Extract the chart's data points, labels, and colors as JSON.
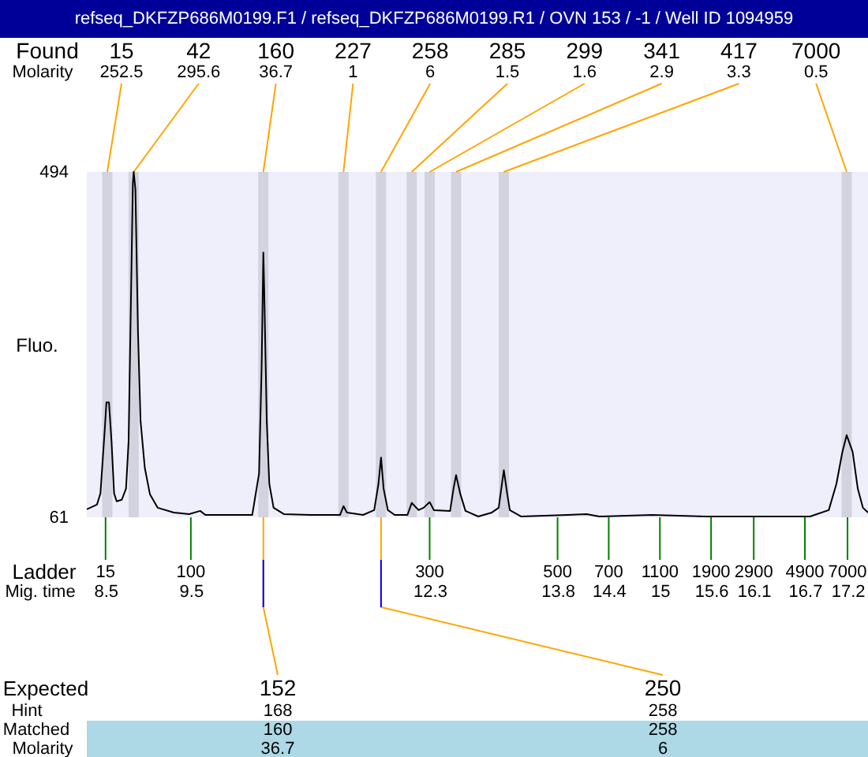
{
  "chart_data": {
    "type": "line",
    "title": "refseq_DKFZP686M0199.F1 / refseq_DKFZP686M0199.R1 / OVN 153 / -1 / Well ID 1094959",
    "xlabel": "Mig. time",
    "ylabel": "Fluo.",
    "xlim": [
      8.28,
      17.44
    ],
    "xticks": [
      8.5,
      9.5,
      12.3,
      13.8,
      14.4,
      15,
      15.6,
      16.1,
      16.7,
      17.2
    ],
    "ylim": [
      61,
      494
    ],
    "yticks": [
      61,
      494
    ],
    "x": [
      8.28,
      8.4,
      8.44,
      8.49,
      8.51,
      8.54,
      8.57,
      8.6,
      8.63,
      8.69,
      8.74,
      8.77,
      8.8,
      8.82,
      8.83,
      8.85,
      8.88,
      8.91,
      8.96,
      9.02,
      9.11,
      9.3,
      9.48,
      9.61,
      9.67,
      10.22,
      10.3,
      10.33,
      10.35,
      10.36,
      10.39,
      10.42,
      10.47,
      10.59,
      10.9,
      11.25,
      11.29,
      11.33,
      11.52,
      11.65,
      11.7,
      11.73,
      11.76,
      11.81,
      11.89,
      12.04,
      12.09,
      12.17,
      12.23,
      12.3,
      12.35,
      12.54,
      12.58,
      12.61,
      12.66,
      12.72,
      12.87,
      13.03,
      13.11,
      13.14,
      13.17,
      13.21,
      13.24,
      13.37,
      13.92,
      14.14,
      14.29,
      14.91,
      15.53,
      16.76,
      16.98,
      17.07,
      17.14,
      17.19,
      17.26,
      17.32,
      17.38,
      17.44
    ],
    "series": [
      {
        "color": "#000000",
        "values": [
          71,
          77,
          91,
          170,
          205,
          205,
          156,
          91,
          81,
          83,
          97,
          156,
          348,
          479,
          494,
          472,
          294,
          182,
          123,
          90,
          73,
          67,
          65,
          69,
          64,
          64,
          116,
          249,
          393,
          348,
          182,
          103,
          73,
          65,
          64,
          64,
          75,
          67,
          64,
          70,
          103,
          136,
          97,
          70,
          64,
          64,
          79,
          70,
          73,
          80,
          70,
          69,
          97,
          114,
          90,
          69,
          62,
          67,
          73,
          97,
          120,
          90,
          70,
          62,
          64,
          65,
          62,
          64,
          62,
          62,
          70,
          103,
          143,
          164,
          143,
          97,
          73,
          67
        ]
      }
    ],
    "bands": [
      {
        "axis": "x",
        "from": 8.46,
        "to": 8.58,
        "label": "15",
        "color": "#d3d3df"
      },
      {
        "axis": "x",
        "from": 8.77,
        "to": 8.89,
        "label": "42",
        "color": "#d3d3df"
      },
      {
        "axis": "x",
        "from": 10.29,
        "to": 10.41,
        "label": "160",
        "color": "#d3d3df"
      },
      {
        "axis": "x",
        "from": 11.23,
        "to": 11.35,
        "label": "227",
        "color": "#d3d3df"
      },
      {
        "axis": "x",
        "from": 11.67,
        "to": 11.79,
        "label": "258",
        "color": "#d3d3df"
      },
      {
        "axis": "x",
        "from": 12.03,
        "to": 12.15,
        "label": "285",
        "color": "#d3d3df"
      },
      {
        "axis": "x",
        "from": 12.24,
        "to": 12.36,
        "label": "299",
        "color": "#d3d3df"
      },
      {
        "axis": "x",
        "from": 12.55,
        "to": 12.67,
        "label": "341",
        "color": "#d3d3df"
      },
      {
        "axis": "x",
        "from": 13.11,
        "to": 13.23,
        "label": "417",
        "color": "#d3d3df"
      },
      {
        "axis": "x",
        "from": 17.13,
        "to": 17.25,
        "label": "7000",
        "color": "#d3d3df"
      }
    ],
    "annotations": [
      "Found",
      "Molarity",
      "Ladder",
      "Expected",
      "Hint",
      "Matched",
      "Molarity",
      {
        "text": "252.5",
        "x": 8.52,
        "y": 494
      },
      {
        "text": "295.6",
        "x": 8.83,
        "y": 494
      },
      {
        "text": "36.7",
        "x": 10.35,
        "y": 494
      },
      {
        "text": "1",
        "x": 11.29,
        "y": 494
      },
      {
        "text": "6",
        "x": 11.73,
        "y": 494
      },
      {
        "text": "1.5",
        "x": 12.09,
        "y": 494
      },
      {
        "text": "1.6",
        "x": 12.3,
        "y": 494
      },
      {
        "text": "2.9",
        "x": 12.61,
        "y": 494
      },
      {
        "text": "3.3",
        "x": 13.17,
        "y": 494
      },
      {
        "text": "0.5",
        "x": 17.19,
        "y": 494
      },
      "15",
      "100",
      "300",
      "500",
      "700",
      "1100",
      "1900",
      "2900",
      "4900",
      "7000",
      {
        "text": "152",
        "x": 10.35,
        "y": 61
      },
      {
        "text": "250",
        "x": 11.73,
        "y": 61
      },
      "168",
      "160",
      "36.7",
      "258",
      "258",
      "6"
    ]
  }
}
